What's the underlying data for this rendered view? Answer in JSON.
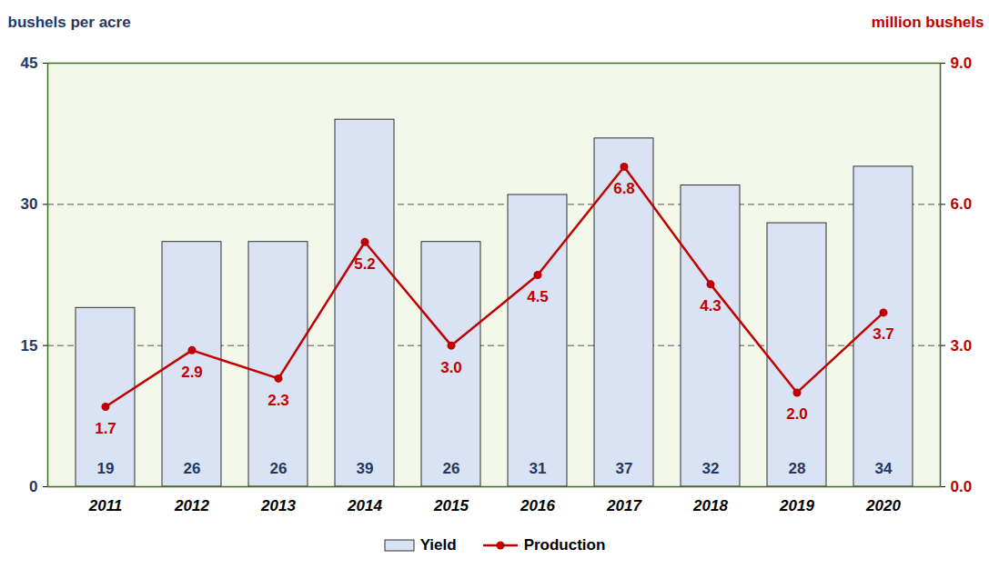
{
  "chart_data": {
    "type": "bar",
    "y_label": "bushels per acre",
    "y2_label": "million bushels",
    "categories": [
      "2011",
      "2012",
      "2013",
      "2014",
      "2015",
      "2016",
      "2017",
      "2018",
      "2019",
      "2020"
    ],
    "series": [
      {
        "name": "Yield",
        "type": "bar",
        "color": "#dae3f3",
        "values": [
          19,
          26,
          26,
          39,
          26,
          31,
          37,
          32,
          28,
          34
        ]
      },
      {
        "name": "Production",
        "type": "line",
        "axis": "y2",
        "color": "#c00000",
        "marker": "circle",
        "values": [
          1.7,
          2.9,
          2.3,
          5.2,
          3.0,
          4.5,
          6.8,
          4.3,
          2.0,
          3.7
        ],
        "value_labels": [
          "1.7",
          "2.9",
          "2.3",
          "5.2",
          "3.0",
          "4.5",
          "6.8",
          "4.3",
          "2.0",
          "3.7"
        ]
      }
    ],
    "ylim": [
      0,
      45
    ],
    "yticks": [
      0,
      15,
      30,
      45
    ],
    "y2lim": [
      0,
      9
    ],
    "y2ticks": [
      {
        "value": 0,
        "label": "0.0"
      },
      {
        "value": 3,
        "label": "3.0"
      },
      {
        "value": 6,
        "label": "6.0"
      },
      {
        "value": 9,
        "label": "9.0"
      }
    ],
    "grid": true,
    "data_labels": true,
    "legend": "bottom"
  }
}
